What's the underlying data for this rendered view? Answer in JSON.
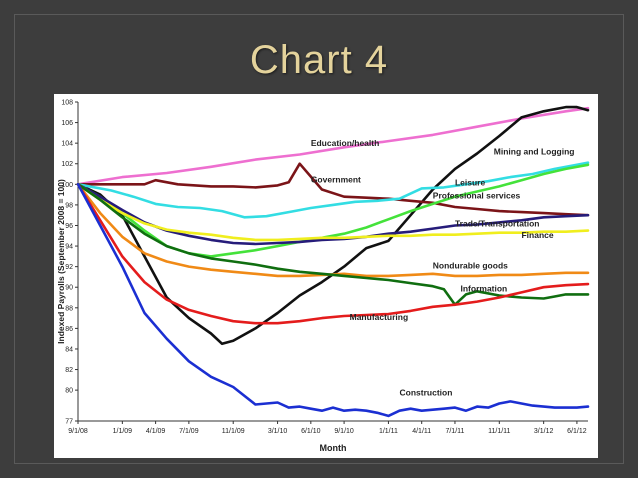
{
  "slide": {
    "title": "Chart 4"
  },
  "chart_data": {
    "type": "line",
    "title": "",
    "xlabel": "Month",
    "ylabel": "Indexed Payrolls (September 2008 = 100)",
    "ylim": [
      77,
      108
    ],
    "yticks": [
      77,
      80,
      82,
      84,
      86,
      88,
      90,
      92,
      94,
      96,
      98,
      100,
      102,
      104,
      106,
      108
    ],
    "xlim": [
      0,
      46
    ],
    "xticks": [
      {
        "label": "9/1/08",
        "x": 0
      },
      {
        "label": "1/1/09",
        "x": 4
      },
      {
        "label": "4/1/09",
        "x": 7
      },
      {
        "label": "7/1/09",
        "x": 10
      },
      {
        "label": "11/1/09",
        "x": 14
      },
      {
        "label": "3/1/10",
        "x": 18
      },
      {
        "label": "6/1/10",
        "x": 21
      },
      {
        "label": "9/1/10",
        "x": 24
      },
      {
        "label": "1/1/11",
        "x": 28
      },
      {
        "label": "4/1/11",
        "x": 31
      },
      {
        "label": "7/1/11",
        "x": 34
      },
      {
        "label": "11/1/11",
        "x": 38
      },
      {
        "label": "3/1/12",
        "x": 42
      },
      {
        "label": "6/1/12",
        "x": 45
      }
    ],
    "grid": false,
    "series": [
      {
        "name": "Education/health",
        "color": "#ee6fd0",
        "x": [
          0,
          4,
          8,
          12,
          16,
          20,
          24,
          28,
          32,
          36,
          40,
          44,
          46
        ],
        "y": [
          100,
          100.7,
          101.1,
          101.7,
          102.4,
          102.9,
          103.6,
          104.2,
          104.8,
          105.6,
          106.4,
          107.1,
          107.4
        ],
        "label_at": [
          21,
          103.7
        ]
      },
      {
        "name": "Mining and Logging",
        "color": "#111111",
        "x": [
          0,
          2,
          4,
          6,
          8,
          10,
          12,
          13,
          14,
          16,
          18,
          20,
          22,
          24,
          26,
          28,
          30,
          32,
          34,
          36,
          38,
          40,
          42,
          44,
          45,
          46
        ],
        "y": [
          100,
          99,
          97,
          93,
          89,
          87,
          85.5,
          84.5,
          84.8,
          86,
          87.5,
          89.2,
          90.5,
          92,
          93.8,
          94.5,
          97,
          99.5,
          101.5,
          103,
          104.7,
          106.5,
          107.1,
          107.5,
          107.5,
          107.2
        ],
        "label_at": [
          37.5,
          102.9
        ]
      },
      {
        "name": "Government",
        "color": "#7b1418",
        "x": [
          0,
          3,
          6,
          7,
          9,
          12,
          14,
          16,
          18,
          19,
          20,
          22,
          24,
          26,
          28,
          30,
          32,
          34,
          36,
          38,
          40,
          42,
          44,
          46
        ],
        "y": [
          100,
          100,
          100,
          100.4,
          100,
          99.8,
          99.8,
          99.7,
          99.9,
          100.2,
          102,
          99.5,
          98.8,
          98.7,
          98.6,
          98.4,
          98.2,
          97.8,
          97.6,
          97.4,
          97.3,
          97.2,
          97.1,
          97
        ],
        "label_at": [
          21,
          100.2
        ]
      },
      {
        "name": "Leisure",
        "color": "#33dde3",
        "x": [
          0,
          3,
          5,
          7,
          9,
          11,
          13,
          15,
          17,
          19,
          21,
          23,
          25,
          27,
          29,
          31,
          33,
          35,
          37,
          39,
          41,
          43,
          45,
          46
        ],
        "y": [
          100,
          99.4,
          98.8,
          98.1,
          97.8,
          97.7,
          97.4,
          96.8,
          96.9,
          97.3,
          97.7,
          98,
          98.3,
          98.4,
          98.6,
          99.6,
          99.7,
          100,
          100.3,
          100.7,
          101,
          101.5,
          101.9,
          102.1
        ],
        "label_at": [
          34,
          99.9
        ]
      },
      {
        "name": "Professional services",
        "color": "#44e23a",
        "x": [
          0,
          2,
          4,
          6,
          8,
          10,
          12,
          14,
          16,
          18,
          20,
          22,
          24,
          26,
          28,
          30,
          32,
          34,
          36,
          38,
          40,
          42,
          44,
          46
        ],
        "y": [
          100,
          98.8,
          97.2,
          95.5,
          94,
          93.3,
          93,
          93.3,
          93.6,
          94,
          94.4,
          94.8,
          95.2,
          95.8,
          96.6,
          97.4,
          98.1,
          98.8,
          99.3,
          99.8,
          100.4,
          101,
          101.5,
          101.9
        ],
        "label_at": [
          32,
          98.6
        ]
      },
      {
        "name": "Trade/Transportation",
        "color": "#261c7a",
        "x": [
          0,
          2,
          4,
          6,
          8,
          10,
          12,
          14,
          16,
          18,
          20,
          22,
          24,
          26,
          28,
          30,
          32,
          34,
          36,
          38,
          40,
          42,
          44,
          46
        ],
        "y": [
          100,
          98.8,
          97.5,
          96.3,
          95.5,
          95,
          94.6,
          94.3,
          94.2,
          94.3,
          94.4,
          94.6,
          94.7,
          94.9,
          95.2,
          95.4,
          95.7,
          96,
          96.1,
          96.3,
          96.5,
          96.8,
          96.9,
          97
        ],
        "label_at": [
          34,
          95.9
        ]
      },
      {
        "name": "Finance",
        "color": "#f0ee1e",
        "x": [
          0,
          2,
          4,
          6,
          8,
          10,
          12,
          14,
          16,
          18,
          20,
          22,
          24,
          26,
          28,
          30,
          32,
          34,
          36,
          38,
          40,
          42,
          44,
          46
        ],
        "y": [
          100,
          98.5,
          97.2,
          96.2,
          95.6,
          95.3,
          95.1,
          94.8,
          94.6,
          94.6,
          94.7,
          94.8,
          94.8,
          94.9,
          95,
          95,
          95.1,
          95.1,
          95.2,
          95.3,
          95.3,
          95.4,
          95.4,
          95.5
        ],
        "label_at": [
          40,
          94.8
        ]
      },
      {
        "name": "Nondurable goods",
        "color": "#f08a16",
        "x": [
          0,
          2,
          4,
          6,
          8,
          10,
          12,
          14,
          16,
          18,
          20,
          22,
          24,
          26,
          28,
          30,
          32,
          34,
          36,
          38,
          40,
          42,
          44,
          46
        ],
        "y": [
          100,
          97.2,
          94.9,
          93.3,
          92.5,
          92,
          91.7,
          91.5,
          91.3,
          91.1,
          91.1,
          91.2,
          91.3,
          91.1,
          91.1,
          91.2,
          91.3,
          91.1,
          91.1,
          91.2,
          91.2,
          91.3,
          91.4,
          91.4
        ],
        "label_at": [
          32,
          91.8
        ]
      },
      {
        "name": "Information",
        "color": "#106e10",
        "x": [
          0,
          2,
          4,
          6,
          8,
          10,
          12,
          14,
          16,
          18,
          20,
          22,
          24,
          26,
          28,
          30,
          32,
          33,
          34,
          35,
          36,
          38,
          40,
          42,
          43,
          44,
          46
        ],
        "y": [
          100,
          98.5,
          96.8,
          95.2,
          94,
          93.3,
          92.8,
          92.5,
          92.2,
          91.8,
          91.5,
          91.3,
          91.1,
          90.9,
          90.7,
          90.4,
          90.1,
          89.8,
          88.3,
          89.3,
          89.6,
          89.2,
          89,
          88.9,
          89.1,
          89.3,
          89.3
        ],
        "label_at": [
          34.5,
          89.6
        ]
      },
      {
        "name": "Manufacturing",
        "color": "#e41c1c",
        "x": [
          0,
          2,
          4,
          6,
          8,
          10,
          12,
          14,
          16,
          18,
          20,
          22,
          24,
          26,
          28,
          30,
          32,
          34,
          36,
          38,
          40,
          42,
          44,
          46
        ],
        "y": [
          100,
          96.5,
          93,
          90.5,
          88.8,
          87.8,
          87.2,
          86.7,
          86.5,
          86.5,
          86.7,
          87,
          87.2,
          87.3,
          87.4,
          87.7,
          88.1,
          88.3,
          88.6,
          89,
          89.5,
          90,
          90.2,
          90.3
        ],
        "label_at": [
          24.5,
          86.8
        ]
      },
      {
        "name": "Construction",
        "color": "#1b2fd2",
        "x": [
          0,
          2,
          4,
          6,
          8,
          10,
          12,
          14,
          16,
          18,
          19,
          20,
          21,
          22,
          23,
          24,
          25,
          26,
          27,
          28,
          29,
          30,
          31,
          32,
          33,
          34,
          35,
          36,
          37,
          38,
          39,
          40,
          41,
          42,
          43,
          44,
          45,
          46
        ],
        "y": [
          100,
          96,
          92,
          87.5,
          85,
          82.8,
          81.3,
          80.3,
          78.6,
          78.8,
          78.3,
          78.4,
          78.2,
          78,
          78.3,
          78,
          78.1,
          78,
          77.8,
          77.5,
          78,
          78.2,
          78,
          78.1,
          78.2,
          78.3,
          78,
          78.4,
          78.3,
          78.7,
          78.9,
          78.7,
          78.5,
          78.4,
          78.3,
          78.3,
          78.3,
          78.4
        ],
        "label_at": [
          29,
          79.5
        ]
      }
    ]
  }
}
